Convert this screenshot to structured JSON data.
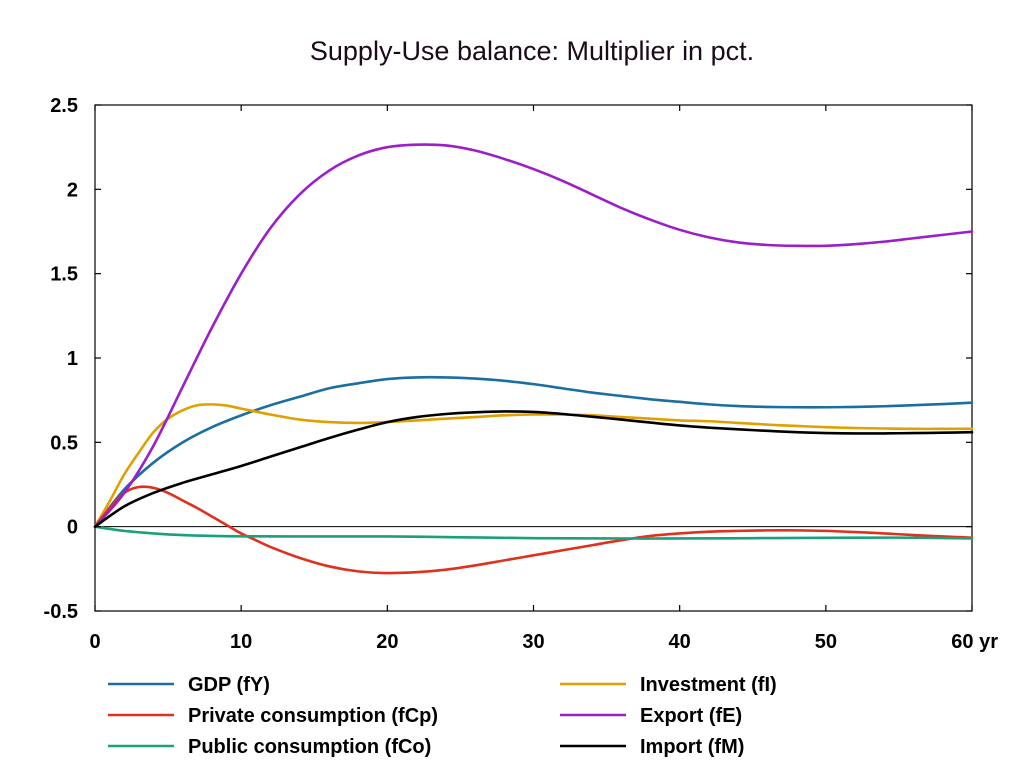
{
  "chart_data": {
    "type": "line",
    "title": "Supply-Use balance: Multiplier in pct.",
    "x_unit_label": "yr",
    "xlim": [
      0,
      60
    ],
    "ylim": [
      -0.5,
      2.5
    ],
    "x_ticks": [
      0,
      10,
      20,
      30,
      40,
      50,
      60
    ],
    "x_tick_labels": [
      "0",
      "10",
      "20",
      "30",
      "40",
      "50",
      "60 yr"
    ],
    "y_ticks": [
      -0.5,
      0,
      0.5,
      1,
      1.5,
      2,
      2.5
    ],
    "y_tick_labels": [
      "-0.5",
      "0",
      "0.5",
      "1",
      "1.5",
      "2",
      "2.5"
    ],
    "grid": false,
    "zero_line": true,
    "legend_position": "bottom",
    "series": [
      {
        "name": "GDP (fY)",
        "color": "#1a6fa0",
        "x": [
          0,
          2,
          4,
          6,
          8,
          10,
          12,
          14,
          16,
          18,
          20,
          22,
          24,
          26,
          28,
          30,
          32,
          34,
          36,
          38,
          40,
          42,
          44,
          46,
          48,
          50,
          52,
          54,
          56,
          58,
          60
        ],
        "y": [
          0,
          0.22,
          0.38,
          0.5,
          0.59,
          0.66,
          0.72,
          0.77,
          0.82,
          0.85,
          0.875,
          0.885,
          0.885,
          0.878,
          0.865,
          0.845,
          0.82,
          0.795,
          0.775,
          0.755,
          0.74,
          0.725,
          0.715,
          0.71,
          0.708,
          0.708,
          0.71,
          0.714,
          0.72,
          0.727,
          0.735
        ]
      },
      {
        "name": "Investment (fI)",
        "color": "#e0a000",
        "x": [
          0,
          1,
          2,
          3,
          4,
          5,
          6,
          7,
          8,
          9,
          10,
          12,
          14,
          16,
          18,
          20,
          22,
          24,
          26,
          28,
          30,
          32,
          34,
          36,
          38,
          40,
          42,
          44,
          46,
          48,
          50,
          52,
          54,
          56,
          58,
          60
        ],
        "y": [
          0,
          0.15,
          0.31,
          0.44,
          0.56,
          0.64,
          0.69,
          0.72,
          0.725,
          0.718,
          0.7,
          0.665,
          0.635,
          0.62,
          0.615,
          0.62,
          0.63,
          0.64,
          0.65,
          0.66,
          0.665,
          0.665,
          0.66,
          0.65,
          0.64,
          0.63,
          0.625,
          0.615,
          0.605,
          0.597,
          0.59,
          0.585,
          0.582,
          0.58,
          0.58,
          0.58
        ]
      },
      {
        "name": "Private consumption (fCp)",
        "color": "#e0301e",
        "x": [
          0,
          1,
          2,
          3,
          4,
          5,
          6,
          7,
          8,
          9,
          10,
          11,
          12,
          14,
          16,
          18,
          20,
          22,
          24,
          26,
          28,
          30,
          32,
          34,
          36,
          38,
          40,
          42,
          44,
          46,
          48,
          50,
          52,
          54,
          56,
          58,
          60
        ],
        "y": [
          0,
          0.11,
          0.2,
          0.235,
          0.23,
          0.2,
          0.155,
          0.11,
          0.06,
          0.01,
          -0.04,
          -0.08,
          -0.12,
          -0.185,
          -0.235,
          -0.265,
          -0.275,
          -0.27,
          -0.255,
          -0.23,
          -0.2,
          -0.17,
          -0.14,
          -0.11,
          -0.08,
          -0.055,
          -0.04,
          -0.03,
          -0.025,
          -0.022,
          -0.022,
          -0.025,
          -0.032,
          -0.04,
          -0.05,
          -0.058,
          -0.065
        ]
      },
      {
        "name": "Export (fE)",
        "color": "#9b1fc9",
        "x": [
          0,
          2,
          4,
          6,
          8,
          10,
          12,
          14,
          16,
          18,
          20,
          22,
          24,
          26,
          28,
          30,
          32,
          34,
          36,
          38,
          40,
          42,
          44,
          46,
          48,
          50,
          52,
          54,
          56,
          58,
          60
        ],
        "y": [
          0,
          0.2,
          0.48,
          0.83,
          1.18,
          1.5,
          1.77,
          1.97,
          2.11,
          2.2,
          2.25,
          2.265,
          2.26,
          2.23,
          2.18,
          2.12,
          2.05,
          1.97,
          1.89,
          1.82,
          1.76,
          1.715,
          1.685,
          1.67,
          1.665,
          1.665,
          1.675,
          1.69,
          1.71,
          1.73,
          1.75
        ]
      },
      {
        "name": "Public consumption (fCo)",
        "color": "#1aa07a",
        "x": [
          0,
          2,
          4,
          6,
          8,
          10,
          15,
          20,
          25,
          30,
          35,
          40,
          45,
          50,
          55,
          60
        ],
        "y": [
          0,
          -0.025,
          -0.04,
          -0.05,
          -0.055,
          -0.057,
          -0.058,
          -0.058,
          -0.063,
          -0.068,
          -0.07,
          -0.07,
          -0.068,
          -0.066,
          -0.065,
          -0.07
        ]
      },
      {
        "name": "Import (fM)",
        "color": "#000000",
        "x": [
          0,
          2,
          4,
          6,
          8,
          10,
          12,
          14,
          16,
          18,
          20,
          22,
          24,
          26,
          28,
          30,
          32,
          34,
          36,
          38,
          40,
          42,
          44,
          46,
          48,
          50,
          52,
          54,
          56,
          58,
          60
        ],
        "y": [
          0,
          0.12,
          0.2,
          0.26,
          0.31,
          0.36,
          0.415,
          0.47,
          0.525,
          0.575,
          0.62,
          0.65,
          0.668,
          0.678,
          0.683,
          0.68,
          0.668,
          0.652,
          0.635,
          0.617,
          0.6,
          0.587,
          0.577,
          0.568,
          0.56,
          0.555,
          0.553,
          0.553,
          0.555,
          0.557,
          0.56
        ]
      }
    ]
  }
}
